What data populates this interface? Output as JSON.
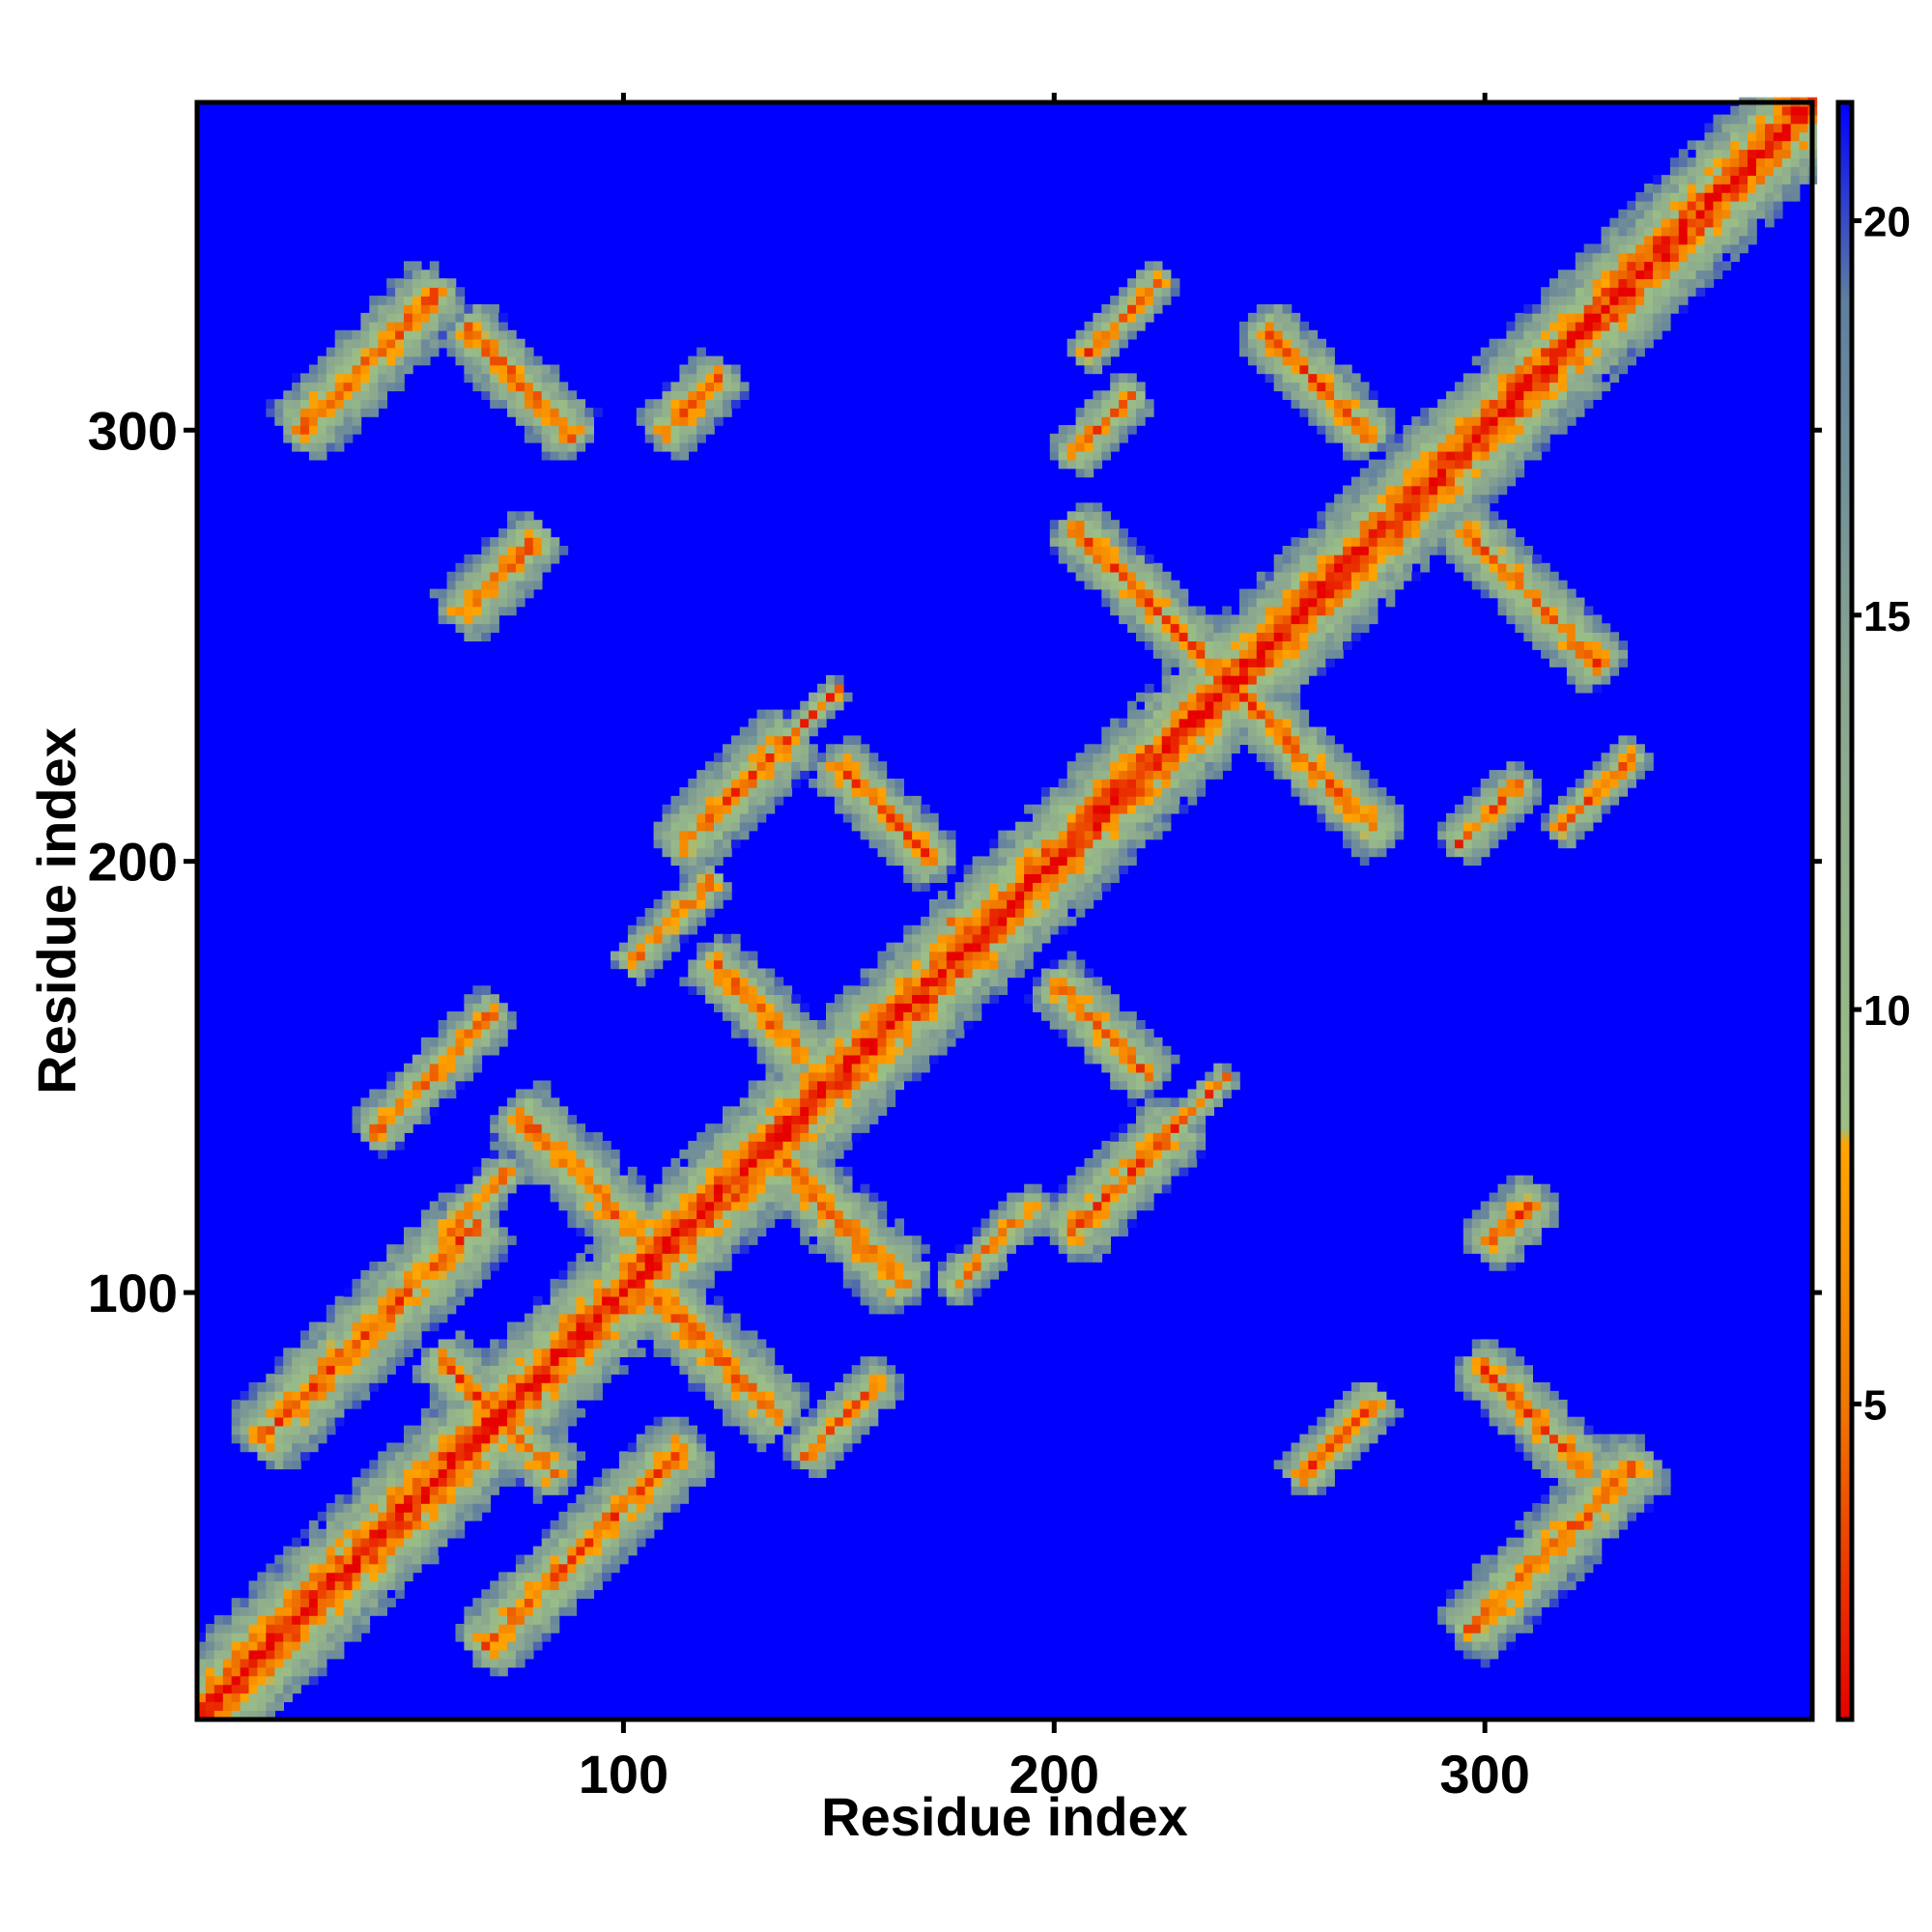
{
  "chart_data": {
    "type": "heatmap",
    "title": "",
    "xlabel": "Residue index",
    "ylabel": "Residue index",
    "xlim": [
      1,
      376
    ],
    "ylim": [
      1,
      376
    ],
    "x_ticks": [
      100,
      200,
      300
    ],
    "y_ticks": [
      100,
      200,
      300
    ],
    "colorbar": {
      "range": [
        1,
        21.5
      ],
      "ticks": [
        5,
        10,
        15,
        20
      ],
      "colors": [
        {
          "value": 1,
          "color": "#e60000"
        },
        {
          "value": 5,
          "color": "#f07800"
        },
        {
          "value": 8.3,
          "color": "#ffa500"
        },
        {
          "value": 8.5,
          "color": "#9bbf86"
        },
        {
          "value": 14,
          "color": "#8aa690"
        },
        {
          "value": 19,
          "color": "#5f7e9f"
        },
        {
          "value": 21.5,
          "color": "#0000ff"
        }
      ],
      "cutoff_background": "#0000ff"
    },
    "features": [
      {
        "kind": "diagonal",
        "from": [
          1,
          1
        ],
        "to": [
          376,
          376
        ],
        "width": 13
      },
      {
        "kind": "antidiagonal",
        "center": [
          70,
          70
        ],
        "length": 38,
        "width": 12
      },
      {
        "kind": "antidiagonal",
        "center": [
          90,
          125
        ],
        "length": 42,
        "width": 14
      },
      {
        "kind": "antidiagonal",
        "center": [
          120,
          85
        ],
        "length": 42,
        "width": 14
      },
      {
        "kind": "antidiagonal",
        "center": [
          130,
          165
        ],
        "length": 30,
        "width": 12
      },
      {
        "kind": "antidiagonal",
        "center": [
          150,
          115
        ],
        "length": 40,
        "width": 14
      },
      {
        "kind": "antidiagonal",
        "center": [
          180,
          180
        ],
        "length": 16,
        "width": 5
      },
      {
        "kind": "antidiagonal",
        "center": [
          160,
          210
        ],
        "length": 32,
        "width": 12
      },
      {
        "kind": "antidiagonal",
        "center": [
          210,
          160
        ],
        "length": 30,
        "width": 12
      },
      {
        "kind": "antidiagonal",
        "center": [
          225,
          255
        ],
        "length": 60,
        "width": 12
      },
      {
        "kind": "antidiagonal",
        "center": [
          255,
          225
        ],
        "length": 55,
        "width": 12
      },
      {
        "kind": "antidiagonal",
        "center": [
          260,
          310
        ],
        "length": 35,
        "width": 12
      },
      {
        "kind": "antidiagonal",
        "center": [
          310,
          260
        ],
        "length": 45,
        "width": 12
      },
      {
        "kind": "antidiagonal",
        "center": [
          75,
          310
        ],
        "length": 35,
        "width": 12
      },
      {
        "kind": "antidiagonal",
        "center": [
          310,
          70
        ],
        "length": 35,
        "width": 12
      },
      {
        "kind": "parallel",
        "center": [
          40,
          90
        ],
        "length": 70,
        "width": 16
      },
      {
        "kind": "parallel",
        "center": [
          90,
          40
        ],
        "length": 65,
        "width": 14
      },
      {
        "kind": "parallel",
        "center": [
          55,
          150
        ],
        "length": 40,
        "width": 10
      },
      {
        "kind": "parallel",
        "center": [
          65,
          120
        ],
        "length": 22,
        "width": 8
      },
      {
        "kind": "parallel",
        "center": [
          150,
          70
        ],
        "length": 25,
        "width": 10
      },
      {
        "kind": "parallel",
        "center": [
          215,
          125
        ],
        "length": 35,
        "width": 14
      },
      {
        "kind": "parallel",
        "center": [
          125,
          215
        ],
        "length": 35,
        "width": 14
      },
      {
        "kind": "parallel",
        "center": [
          40,
          315
        ],
        "length": 45,
        "width": 14
      },
      {
        "kind": "parallel",
        "center": [
          315,
          40
        ],
        "length": 55,
        "width": 14
      },
      {
        "kind": "parallel",
        "center": [
          305,
          115
        ],
        "length": 15,
        "width": 12
      },
      {
        "kind": "parallel",
        "center": [
          115,
          305
        ],
        "length": 18,
        "width": 12
      },
      {
        "kind": "parallel",
        "center": [
          70,
          265
        ],
        "length": 25,
        "width": 12
      },
      {
        "kind": "parallel",
        "center": [
          265,
          65
        ],
        "length": 25,
        "width": 10
      },
      {
        "kind": "parallel",
        "center": [
          300,
          210
        ],
        "length": 20,
        "width": 10
      },
      {
        "kind": "parallel",
        "center": [
          210,
          300
        ],
        "length": 20,
        "width": 10
      },
      {
        "kind": "parallel",
        "center": [
          110,
          185
        ],
        "length": 28,
        "width": 8
      },
      {
        "kind": "parallel",
        "center": [
          185,
          110
        ],
        "length": 28,
        "width": 8
      },
      {
        "kind": "parallel",
        "center": [
          325,
          215
        ],
        "length": 25,
        "width": 8
      },
      {
        "kind": "parallel",
        "center": [
          215,
          325
        ],
        "length": 25,
        "width": 8
      },
      {
        "kind": "parallel",
        "center": [
          140,
          230
        ],
        "length": 25,
        "width": 6
      },
      {
        "kind": "parallel",
        "center": [
          230,
          140
        ],
        "length": 25,
        "width": 6
      },
      {
        "kind": "parallel",
        "center": [
          365,
          365
        ],
        "length": 25,
        "width": 10
      }
    ]
  }
}
